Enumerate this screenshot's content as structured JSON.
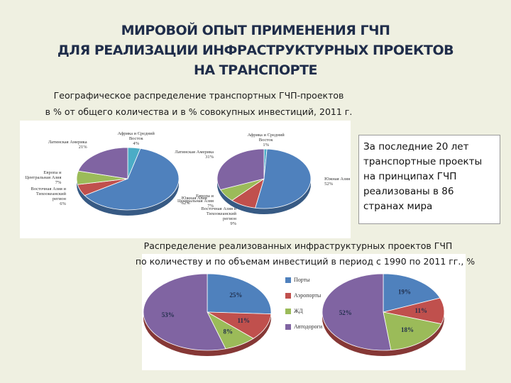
{
  "slide": {
    "title": [
      "МИРОВОЙ ОПЫТ ПРИМЕНЕНИЯ ГЧП",
      "ДЛЯ РЕАЛИЗАЦИИ ИНФРАСТРУКТУРНЫХ ПРОЕКТОВ",
      "НА ТРАНСПОРТЕ"
    ],
    "note": "За последние 20 лет транспортные проекты на принципах ГЧП реализованы в 86 странах мира"
  },
  "chart_data": [
    {
      "type": "pie",
      "title": [
        "Географическое распределение транспортных ГЧП-проектов",
        "в % от общего количества и в % совокупных инвестиций, 2011 г."
      ],
      "categories": [
        "Африка и Средний Восток",
        "Южная Азия",
        "Восточная Азия и Тихоокеанский регион",
        "Европа и Центральная Азия",
        "Латинская Америка"
      ],
      "colors": [
        "#4bacc6",
        "#4f81bd",
        "#c0504d",
        "#9bbb59",
        "#8064a2"
      ],
      "series": [
        {
          "values": [
            4,
            62,
            6,
            7,
            21
          ],
          "value_labels": [
            "4%",
            "62%",
            "6%",
            "7%",
            "21%"
          ]
        },
        {
          "values": [
            1,
            52,
            9,
            7,
            31
          ],
          "value_labels": [
            "1%",
            "52%",
            "9%",
            "7%",
            "31%"
          ]
        }
      ]
    },
    {
      "type": "pie",
      "title": [
        "Распределение реализованных инфраструктурных проектов ГЧП",
        "по количеству и по объемам инвестиций в период с 1990 по 2011 гг., %"
      ],
      "categories": [
        "Порты",
        "Аэропорты",
        "ЖД",
        "Автодороги"
      ],
      "colors": [
        "#4f81bd",
        "#c0504d",
        "#9bbb59",
        "#8064a2"
      ],
      "series": [
        {
          "values": [
            25,
            11,
            8,
            53
          ],
          "value_labels": [
            "25%",
            "11%",
            "8%",
            "53%"
          ]
        },
        {
          "values": [
            19,
            11,
            18,
            52
          ],
          "value_labels": [
            "19%",
            "11%",
            "18%",
            "52%"
          ]
        }
      ]
    }
  ]
}
